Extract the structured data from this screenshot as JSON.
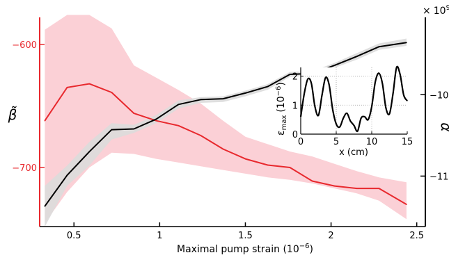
{
  "chart_data": {
    "type": "line",
    "x_label": "Maximal pump strain (10",
    "x_label_exp": "−6",
    "x_label_close": ")",
    "x_ticks": [
      0.5,
      1,
      1.5,
      2,
      2.5
    ],
    "x_tick_labels": [
      "0.5",
      "1",
      "1.5",
      "2",
      "2.5"
    ],
    "xlim": [
      0.3,
      2.55
    ],
    "left_axis": {
      "label": "β̃",
      "color": "#e8292e",
      "ylim": [
        -748,
        -578
      ],
      "ticks": [
        -600,
        -700
      ],
      "tick_labels": [
        "−600",
        "−700"
      ]
    },
    "right_axis": {
      "label": "α̃",
      "color": "#000000",
      "multiplier": "×",
      "multiplier_base": "10",
      "multiplier_exp": "9",
      "ylim": [
        -11.62,
        -9.05
      ],
      "ticks": [
        -10,
        -11
      ],
      "tick_labels": [
        "−10",
        "−11"
      ]
    },
    "x": [
      0.33,
      0.46,
      0.59,
      0.72,
      0.85,
      0.98,
      1.11,
      1.24,
      1.37,
      1.5,
      1.63,
      1.76,
      1.89,
      2.02,
      2.15,
      2.28,
      2.44
    ],
    "series": [
      {
        "axis": "left",
        "color": "#e8292e",
        "band_color": "#fbd0d6",
        "values": [
          -662,
          -635,
          -632,
          -639,
          -656,
          -662,
          -666,
          -674,
          -685,
          -693,
          -698,
          -700,
          -711,
          -715,
          -717,
          -717,
          -730
        ],
        "lower": [
          -745,
          -720,
          -700,
          -688,
          -689,
          -693,
          -696,
          -699,
          -702,
          -705,
          -708,
          -710,
          -713,
          -717,
          -721,
          -727,
          -742
        ],
        "upper": [
          -588,
          -576,
          -576,
          -587,
          -617,
          -627,
          -637,
          -648,
          -662,
          -675,
          -681,
          -687,
          -691,
          -697,
          -703,
          -708,
          -712
        ]
      },
      {
        "axis": "right",
        "color": "#000000",
        "band_color": "#dcdcdc",
        "values": [
          -11.37,
          -10.99,
          -10.7,
          -10.43,
          -10.42,
          -10.3,
          -10.12,
          -10.06,
          -10.05,
          -9.98,
          -9.9,
          -9.75,
          -9.74,
          -9.64,
          -9.53,
          -9.41,
          -9.36
        ],
        "lower": [
          -11.62,
          -11.12,
          -10.87,
          -10.55,
          -10.47,
          -10.35,
          -10.17,
          -10.1,
          -10.09,
          -10.02,
          -9.94,
          -9.78,
          -9.77,
          -9.67,
          -9.57,
          -9.45,
          -9.4
        ],
        "upper": [
          -11.12,
          -10.87,
          -10.58,
          -10.35,
          -10.37,
          -10.25,
          -10.07,
          -10.03,
          -10.02,
          -9.95,
          -9.87,
          -9.72,
          -9.71,
          -9.61,
          -9.49,
          -9.37,
          -9.31
        ]
      }
    ],
    "inset": {
      "type": "line",
      "x_label": "x (cm)",
      "y_label_sym": "ε",
      "y_label_sub": "max",
      "y_label_unit": "(10",
      "y_label_exp": "−6",
      "y_label_close": ")",
      "xlim": [
        0,
        15
      ],
      "ylim": [
        0,
        2.3
      ],
      "x_ticks": [
        0,
        5,
        10,
        15
      ],
      "x_tick_labels": [
        "0",
        "5",
        "10",
        "15"
      ],
      "y_ticks": [
        0,
        1,
        2
      ],
      "y_tick_labels": [
        "0",
        "1",
        "2"
      ],
      "x": [
        0.0,
        0.5,
        1.0,
        1.5,
        2.0,
        2.5,
        3.0,
        3.5,
        4.0,
        4.5,
        5.0,
        5.5,
        6.0,
        6.5,
        7.0,
        7.5,
        8.0,
        8.5,
        9.0,
        9.5,
        10.0,
        10.5,
        11.0,
        11.5,
        12.0,
        12.5,
        13.0,
        13.5,
        14.0,
        14.5,
        15.0
      ],
      "values": [
        0.6,
        1.4,
        1.9,
        1.75,
        0.95,
        0.65,
        1.35,
        1.95,
        1.7,
        0.85,
        0.35,
        0.25,
        0.55,
        0.72,
        0.45,
        0.3,
        0.1,
        0.55,
        0.6,
        0.5,
        0.95,
        1.8,
        2.1,
        1.75,
        0.9,
        0.7,
        1.4,
        2.3,
        2.05,
        1.35,
        1.15
      ]
    }
  }
}
